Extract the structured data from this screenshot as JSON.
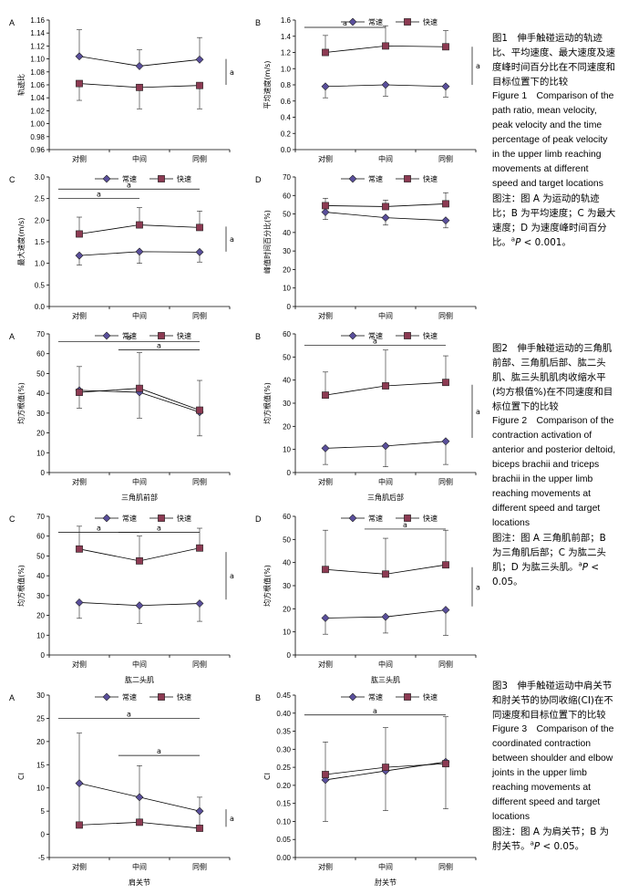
{
  "legend": {
    "normal": "常速",
    "fast": "快速"
  },
  "colors": {
    "normal": "#5a4f9c",
    "fast": "#8c3a52",
    "line": "#000000"
  },
  "captions": [
    {
      "zh_title": "图1　伸手触碰运动的轨迹比、平均速度、最大速度及速度峰时间百分比在不同速度和目标位置下的比较",
      "en_title": "Figure 1　Comparison of the path ratio, mean velocity, peak velocity and the time percentage of peak velocity in the upper limb reaching movements at different speed and target locations",
      "note_prefix": "图注：图 A 为运动的轨迹比；B 为平均速度；C 为最大速度；D 为速度峰时间百分比。",
      "sup": "a",
      "p_label": "P",
      "p_value": " < 0.001。"
    },
    {
      "zh_title": "图2　伸手触碰运动的三角肌前部、三角肌后部、肱二头肌、肱三头肌肌肉收缩水平(均方根值%)在不同速度和目标位置下的比较",
      "en_title": "Figure 2　Comparison of the contraction activation of anterior and posterior deltoid, biceps brachii and triceps brachii in the upper limb reaching movements at different speed and target locations",
      "note_prefix": "图注：图 A 三角肌前部；B 为三角肌后部；C 为肱二头肌；D 为肱三头肌。",
      "sup": "a",
      "p_label": "P",
      "p_value": " < 0.05。"
    },
    {
      "zh_title": "图3　伸手触碰运动中肩关节和肘关节的协同收缩(CI)在不同速度和目标位置下的比较",
      "en_title": "Figure 3　Comparison of the coordinated contraction between shoulder and elbow joints in the upper limb reaching movements at different speed and target locations",
      "note_prefix": "图注：图 A 为肩关节；B 为肘关节。",
      "sup": "a",
      "p_label": "P",
      "p_value": " < 0.05。"
    }
  ],
  "chart_data": [
    {
      "id": "fig1A",
      "panel_letter": "A",
      "type": "line",
      "legend": "none",
      "categories": [
        "对侧",
        "中间",
        "同侧"
      ],
      "xlabel": "",
      "ylabel": "轨迹比",
      "ylim": [
        0.96,
        1.16
      ],
      "yticks": [
        0.96,
        0.98,
        1.0,
        1.02,
        1.04,
        1.06,
        1.08,
        1.1,
        1.12,
        1.14,
        1.16
      ],
      "decimals": 2,
      "series": [
        {
          "name": "常速",
          "values": [
            1.104,
            1.089,
            1.099
          ],
          "err_up": [
            0.041,
            0.025,
            0.034
          ],
          "err_down": [
            0,
            0,
            0
          ]
        },
        {
          "name": "快速",
          "values": [
            1.062,
            1.056,
            1.059
          ],
          "err_up": [
            0,
            0,
            0
          ],
          "err_down": [
            0.026,
            0.033,
            0.036
          ]
        }
      ],
      "sig_hbars": [],
      "sig_vbar": {
        "text": "a",
        "from": 1.06,
        "to": 1.1
      }
    },
    {
      "id": "fig1B",
      "panel_letter": "B",
      "type": "line",
      "legend": "top",
      "categories": [
        "对侧",
        "中间",
        "同侧"
      ],
      "xlabel": "",
      "ylabel": "平均速度(m/s)",
      "ylim": [
        0,
        1.6
      ],
      "yticks": [
        0,
        0.2,
        0.4,
        0.6,
        0.8,
        1.0,
        1.2,
        1.4,
        1.6
      ],
      "decimals": 1,
      "series": [
        {
          "name": "常速",
          "values": [
            0.78,
            0.8,
            0.78
          ],
          "err_up": [
            0,
            0,
            0
          ],
          "err_down": [
            0.14,
            0.14,
            0.13
          ]
        },
        {
          "name": "快速",
          "values": [
            1.2,
            1.28,
            1.27
          ],
          "err_up": [
            0.21,
            0.25,
            0.2
          ],
          "err_down": [
            0,
            0,
            0
          ]
        }
      ],
      "sig_hbars": [
        {
          "text": "a",
          "from": 0,
          "to": 1,
          "y": 1.51
        }
      ],
      "sig_vbar": {
        "text": "a",
        "from": 0.8,
        "to": 1.27
      }
    },
    {
      "id": "fig1C",
      "panel_letter": "C",
      "type": "line",
      "legend": "top",
      "categories": [
        "对侧",
        "中间",
        "同侧"
      ],
      "xlabel": "",
      "ylabel": "最大速度(m/s)",
      "ylim": [
        0,
        3
      ],
      "yticks": [
        0,
        0.5,
        1,
        1.5,
        2,
        2.5,
        3
      ],
      "decimals": 1,
      "series": [
        {
          "name": "常速",
          "values": [
            1.18,
            1.27,
            1.26
          ],
          "err_up": [
            0,
            0,
            0
          ],
          "err_down": [
            0.22,
            0.27,
            0.23
          ]
        },
        {
          "name": "快速",
          "values": [
            1.68,
            1.89,
            1.83
          ],
          "err_up": [
            0.39,
            0.4,
            0.38
          ],
          "err_down": [
            0,
            0,
            0
          ]
        }
      ],
      "sig_hbars": [
        {
          "text": "a",
          "from": 0,
          "to": 1,
          "y": 2.5
        },
        {
          "text": "a",
          "from": 0,
          "to": 2,
          "y": 2.72
        }
      ],
      "sig_vbar": {
        "text": "a",
        "from": 1.27,
        "to": 1.85
      }
    },
    {
      "id": "fig1D",
      "panel_letter": "D",
      "type": "line",
      "legend": "top",
      "categories": [
        "对侧",
        "中间",
        "同侧"
      ],
      "xlabel": "",
      "ylabel": "峰值时间百分比(%)",
      "ylim": [
        0,
        70
      ],
      "yticks": [
        0,
        10,
        20,
        30,
        40,
        50,
        60,
        70
      ],
      "decimals": 0,
      "series": [
        {
          "name": "常速",
          "values": [
            51,
            48,
            46.5
          ],
          "err_up": [
            0,
            0,
            0
          ],
          "err_down": [
            4,
            4,
            4
          ]
        },
        {
          "name": "快速",
          "values": [
            54.5,
            54,
            55.5
          ],
          "err_up": [
            4,
            3.5,
            6
          ],
          "err_down": [
            0,
            0,
            0
          ]
        }
      ],
      "sig_hbars": [],
      "sig_vbar": null
    },
    {
      "id": "fig2A",
      "panel_letter": "A",
      "type": "line",
      "legend": "top",
      "categories": [
        "对侧",
        "中间",
        "同侧"
      ],
      "xlabel": "三角肌前部",
      "ylabel": "均方根值(%)",
      "ylim": [
        0,
        70
      ],
      "yticks": [
        0,
        10,
        20,
        30,
        40,
        50,
        60,
        70
      ],
      "decimals": 0,
      "series": [
        {
          "name": "常速",
          "values": [
            41.5,
            40.5,
            30.5
          ],
          "err_up": [
            12,
            20,
            16
          ],
          "err_down": [
            9,
            13,
            12
          ]
        },
        {
          "name": "快速",
          "values": [
            40.5,
            42.5,
            31.5
          ],
          "err_up": [
            0,
            0,
            0
          ],
          "err_down": [
            0,
            0,
            0
          ]
        }
      ],
      "sig_hbars": [
        {
          "text": "a",
          "from": 1,
          "to": 2,
          "y": 62
        },
        {
          "text": "a",
          "from": 0,
          "to": 2,
          "y": 66
        }
      ],
      "sig_vbar": null
    },
    {
      "id": "fig2B",
      "panel_letter": "B",
      "type": "line",
      "legend": "top",
      "categories": [
        "对侧",
        "中间",
        "同侧"
      ],
      "xlabel": "三角肌后部",
      "ylabel": "均方根值(%)",
      "ylim": [
        0,
        60
      ],
      "yticks": [
        0,
        10,
        20,
        30,
        40,
        50,
        60
      ],
      "decimals": 0,
      "series": [
        {
          "name": "常速",
          "values": [
            10.5,
            11.5,
            13.5
          ],
          "err_up": [
            0,
            0,
            0
          ],
          "err_down": [
            7,
            9,
            10
          ]
        },
        {
          "name": "快速",
          "values": [
            33.5,
            37.5,
            39
          ],
          "err_up": [
            10,
            15.5,
            11.5
          ],
          "err_down": [
            0,
            0,
            0
          ]
        }
      ],
      "sig_hbars": [
        {
          "text": "a",
          "from": 0,
          "to": 2,
          "y": 55
        }
      ],
      "sig_vbar": {
        "text": "a",
        "from": 15,
        "to": 38
      }
    },
    {
      "id": "fig2C",
      "panel_letter": "C",
      "type": "line",
      "legend": "top",
      "categories": [
        "对侧",
        "中间",
        "同侧"
      ],
      "xlabel": "肱二头肌",
      "ylabel": "均方根值(%)",
      "ylim": [
        0,
        70
      ],
      "yticks": [
        0,
        10,
        20,
        30,
        40,
        50,
        60,
        70
      ],
      "decimals": 0,
      "series": [
        {
          "name": "常速",
          "values": [
            26.5,
            25,
            26
          ],
          "err_up": [
            0,
            0,
            0
          ],
          "err_down": [
            8,
            9,
            9
          ]
        },
        {
          "name": "快速",
          "values": [
            53.5,
            47.5,
            54
          ],
          "err_up": [
            11.5,
            12.5,
            10
          ],
          "err_down": [
            0,
            0,
            0
          ]
        }
      ],
      "sig_hbars": [
        {
          "text": "a",
          "from": 0,
          "to": 1,
          "y": 62
        },
        {
          "text": "a",
          "from": 1,
          "to": 2,
          "y": 62
        }
      ],
      "sig_vbar": {
        "text": "a",
        "from": 28,
        "to": 52
      }
    },
    {
      "id": "fig2D",
      "panel_letter": "D",
      "type": "line",
      "legend": "top",
      "categories": [
        "对侧",
        "中间",
        "同侧"
      ],
      "xlabel": "肱三头肌",
      "ylabel": "均方根值(%)",
      "ylim": [
        0,
        60
      ],
      "yticks": [
        0,
        10,
        20,
        30,
        40,
        50,
        60
      ],
      "decimals": 0,
      "series": [
        {
          "name": "常速",
          "values": [
            16,
            16.5,
            19.5
          ],
          "err_up": [
            0,
            0,
            0
          ],
          "err_down": [
            7,
            7,
            11
          ]
        },
        {
          "name": "快速",
          "values": [
            37,
            35,
            39
          ],
          "err_up": [
            17,
            15.5,
            15
          ],
          "err_down": [
            0,
            0,
            0
          ]
        }
      ],
      "sig_hbars": [
        {
          "text": "a",
          "from": 1,
          "to": 2,
          "y": 54.5
        }
      ],
      "sig_vbar": {
        "text": "a",
        "from": 21,
        "to": 38
      }
    },
    {
      "id": "fig3A",
      "panel_letter": "A",
      "type": "line",
      "legend": "top",
      "categories": [
        "对侧",
        "中间",
        "同侧"
      ],
      "xlabel": "肩关节",
      "ylabel": "CI",
      "ylim": [
        -5,
        30
      ],
      "yticks": [
        -5,
        0,
        5,
        10,
        15,
        20,
        25,
        30
      ],
      "decimals": 0,
      "series": [
        {
          "name": "常速",
          "values": [
            11,
            8,
            5
          ],
          "err_up": [
            10.8,
            6.8,
            3
          ],
          "err_down": [
            9.5,
            6,
            4
          ]
        },
        {
          "name": "快速",
          "values": [
            2,
            2.6,
            1.3
          ],
          "err_up": [
            0,
            0,
            0
          ],
          "err_down": [
            0,
            0,
            0
          ]
        }
      ],
      "sig_hbars": [
        {
          "text": "a",
          "from": 1,
          "to": 2,
          "y": 17
        },
        {
          "text": "a",
          "from": 0,
          "to": 2,
          "y": 25
        }
      ],
      "sig_vbar": {
        "text": "a",
        "from": 1.6,
        "to": 5.4
      }
    },
    {
      "id": "fig3B",
      "panel_letter": "B",
      "type": "line",
      "legend": "top",
      "categories": [
        "对侧",
        "中间",
        "同侧"
      ],
      "xlabel": "肘关节",
      "ylabel": "CI",
      "ylim": [
        0,
        0.45
      ],
      "yticks": [
        0,
        0.05,
        0.1,
        0.15,
        0.2,
        0.25,
        0.3,
        0.35,
        0.4,
        0.45
      ],
      "decimals": 2,
      "series": [
        {
          "name": "常速",
          "values": [
            0.215,
            0.24,
            0.265
          ],
          "err_up": [
            0.105,
            0.12,
            0.125
          ],
          "err_down": [
            0.115,
            0.11,
            0.13
          ]
        },
        {
          "name": "快速",
          "values": [
            0.23,
            0.25,
            0.26
          ],
          "err_up": [
            0,
            0,
            0
          ],
          "err_down": [
            0,
            0,
            0
          ]
        }
      ],
      "sig_hbars": [
        {
          "text": "a",
          "from": 0,
          "to": 2,
          "y": 0.395
        }
      ],
      "sig_vbar": null
    }
  ]
}
